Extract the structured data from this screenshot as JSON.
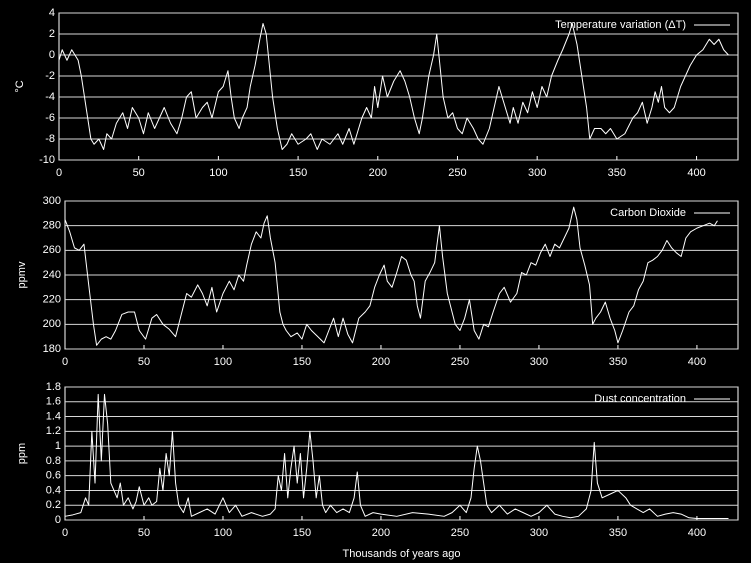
{
  "chart_data": [
    {
      "type": "line",
      "y_label": "°C",
      "legend": "upper right",
      "grid": true,
      "xlim": [
        0,
        426
      ],
      "ylim": [
        -10,
        4
      ],
      "xticks": [
        0,
        50,
        100,
        150,
        200,
        250,
        300,
        350,
        400
      ],
      "yticks": [
        -10,
        -8,
        -6,
        -4,
        -2,
        0,
        2,
        4
      ],
      "x": [
        0,
        2,
        5,
        8,
        10,
        12,
        14,
        16,
        18,
        20,
        22,
        25,
        28,
        30,
        33,
        36,
        40,
        43,
        46,
        50,
        53,
        56,
        60,
        63,
        66,
        70,
        74,
        77,
        80,
        83,
        86,
        90,
        93,
        96,
        100,
        103,
        106,
        108,
        110,
        113,
        115,
        118,
        120,
        123,
        126,
        128,
        130,
        132,
        134,
        137,
        140,
        143,
        146,
        150,
        155,
        158,
        162,
        165,
        170,
        175,
        178,
        182,
        185,
        188,
        190,
        193,
        196,
        198,
        200,
        203,
        206,
        210,
        214,
        217,
        220,
        223,
        226,
        228,
        230,
        232,
        235,
        237,
        239,
        241,
        244,
        247,
        250,
        253,
        256,
        260,
        263,
        266,
        270,
        273,
        276,
        279,
        283,
        285,
        288,
        291,
        294,
        297,
        300,
        303,
        306,
        309,
        313,
        316,
        320,
        322,
        325,
        328,
        331,
        333,
        336,
        340,
        343,
        346,
        350,
        355,
        360,
        363,
        366,
        369,
        372,
        374,
        376,
        378,
        380,
        383,
        386,
        388,
        390,
        393,
        396,
        400,
        404,
        408,
        411,
        414,
        417,
        420
      ],
      "series": [
        {
          "name": "Temperature variation (ΔT)",
          "color": "#ffffff",
          "values": [
            -0.5,
            0.5,
            -0.5,
            0.5,
            0,
            -0.5,
            -2,
            -4,
            -6,
            -8,
            -8.5,
            -8,
            -9,
            -7.5,
            -8,
            -6.5,
            -5.5,
            -7,
            -5,
            -6,
            -7.5,
            -5.5,
            -7,
            -6,
            -5,
            -6.5,
            -7.5,
            -6,
            -4,
            -3.5,
            -6,
            -5,
            -4.5,
            -6,
            -3.5,
            -3,
            -1.5,
            -4,
            -6,
            -7,
            -6,
            -5,
            -3,
            -1,
            1.5,
            3,
            2,
            -1,
            -4,
            -7,
            -9,
            -8.5,
            -7.5,
            -8.5,
            -8,
            -7.5,
            -9,
            -8,
            -8.5,
            -7.5,
            -8.5,
            -7,
            -8.5,
            -7,
            -6,
            -5,
            -6,
            -3,
            -5,
            -2,
            -4,
            -2.5,
            -1.5,
            -2.5,
            -4,
            -6,
            -7.5,
            -6,
            -4,
            -2,
            0,
            2,
            -1,
            -4,
            -6,
            -5.5,
            -7,
            -7.5,
            -6,
            -7,
            -8,
            -8.5,
            -7,
            -5,
            -3,
            -4.5,
            -6.5,
            -5,
            -6.5,
            -4.5,
            -5.5,
            -3.5,
            -5,
            -3,
            -4,
            -2,
            -0.5,
            0.5,
            2,
            3,
            1,
            -2,
            -5,
            -8,
            -7,
            -7,
            -7.5,
            -7,
            -8,
            -7.5,
            -6,
            -5.5,
            -4.5,
            -6.5,
            -5,
            -3.5,
            -4.5,
            -3,
            -5,
            -5.5,
            -5,
            -4,
            -3,
            -2,
            -1,
            0,
            0.5,
            1.5,
            1,
            1.5,
            0.5,
            0
          ]
        }
      ]
    },
    {
      "type": "line",
      "y_label": "ppmv",
      "legend": "upper right",
      "grid": true,
      "xlim": [
        0,
        426
      ],
      "ylim": [
        180,
        300
      ],
      "xticks": [
        0,
        50,
        100,
        150,
        200,
        250,
        300,
        350,
        400
      ],
      "yticks": [
        180,
        200,
        220,
        240,
        260,
        280,
        300
      ],
      "x": [
        0,
        3,
        6,
        9,
        12,
        15,
        18,
        20,
        23,
        26,
        29,
        32,
        36,
        40,
        44,
        47,
        51,
        55,
        58,
        62,
        66,
        70,
        73,
        77,
        80,
        84,
        87,
        90,
        93,
        96,
        100,
        104,
        107,
        110,
        113,
        115,
        118,
        121,
        124,
        126,
        128,
        130,
        133,
        136,
        138,
        140,
        143,
        147,
        150,
        153,
        156,
        160,
        164,
        167,
        170,
        173,
        176,
        179,
        182,
        186,
        190,
        193,
        196,
        199,
        202,
        204,
        207,
        210,
        213,
        216,
        219,
        221,
        223,
        225,
        228,
        231,
        234,
        237,
        239,
        242,
        245,
        247,
        250,
        253,
        256,
        259,
        262,
        265,
        268,
        271,
        275,
        278,
        282,
        286,
        289,
        292,
        295,
        298,
        301,
        304,
        307,
        310,
        313,
        316,
        319,
        322,
        324,
        326,
        329,
        332,
        334,
        336,
        339,
        342,
        345,
        348,
        350,
        353,
        357,
        360,
        363,
        366,
        369,
        372,
        375,
        378,
        381,
        384,
        387,
        390,
        393,
        396,
        400,
        404,
        408,
        411,
        413
      ],
      "series": [
        {
          "name": "Carbon Dioxide",
          "color": "#ffffff",
          "values": [
            285,
            275,
            262,
            260,
            265,
            232,
            200,
            183,
            188,
            190,
            188,
            195,
            208,
            210,
            210,
            195,
            188,
            205,
            208,
            200,
            196,
            190,
            205,
            225,
            222,
            232,
            225,
            215,
            230,
            210,
            225,
            235,
            228,
            240,
            235,
            248,
            265,
            275,
            270,
            282,
            288,
            270,
            250,
            210,
            200,
            195,
            190,
            193,
            188,
            200,
            195,
            190,
            185,
            195,
            205,
            190,
            205,
            192,
            185,
            205,
            210,
            215,
            230,
            240,
            248,
            235,
            230,
            242,
            255,
            252,
            240,
            235,
            215,
            205,
            235,
            242,
            250,
            280,
            255,
            225,
            210,
            200,
            195,
            205,
            220,
            195,
            188,
            200,
            198,
            210,
            225,
            230,
            218,
            225,
            242,
            240,
            250,
            248,
            258,
            265,
            255,
            265,
            262,
            270,
            278,
            295,
            285,
            262,
            248,
            232,
            200,
            205,
            210,
            218,
            205,
            195,
            185,
            195,
            210,
            215,
            228,
            235,
            250,
            252,
            255,
            260,
            268,
            262,
            258,
            255,
            270,
            275,
            278,
            280,
            282,
            280,
            284
          ]
        }
      ]
    },
    {
      "type": "line",
      "y_label": "ppm",
      "x_label": "Thousands of years ago",
      "legend": "upper right",
      "grid": true,
      "xlim": [
        0,
        426
      ],
      "ylim": [
        0,
        1.8
      ],
      "xticks": [
        0,
        50,
        100,
        150,
        200,
        250,
        300,
        350,
        400
      ],
      "yticks": [
        0,
        0.2,
        0.4,
        0.6,
        0.8,
        1,
        1.2,
        1.4,
        1.6,
        1.8
      ],
      "x": [
        0,
        5,
        10,
        13,
        15,
        17,
        19,
        21,
        23,
        25,
        27,
        29,
        31,
        33,
        35,
        37,
        40,
        43,
        45,
        47,
        50,
        53,
        55,
        58,
        60,
        62,
        64,
        66,
        68,
        70,
        72,
        75,
        78,
        80,
        85,
        90,
        95,
        100,
        104,
        108,
        112,
        118,
        125,
        130,
        133,
        135,
        137,
        139,
        141,
        143,
        145,
        147,
        149,
        151,
        153,
        155,
        157,
        159,
        161,
        163,
        165,
        168,
        172,
        176,
        180,
        183,
        185,
        187,
        190,
        195,
        200,
        210,
        220,
        230,
        240,
        245,
        250,
        254,
        257,
        259,
        261,
        263,
        265,
        267,
        270,
        275,
        280,
        285,
        290,
        295,
        300,
        305,
        310,
        315,
        320,
        325,
        330,
        333,
        335,
        337,
        340,
        345,
        350,
        355,
        358,
        362,
        366,
        370,
        375,
        380,
        385,
        390,
        395,
        400,
        410,
        420
      ],
      "series": [
        {
          "name": "Dust concentration",
          "color": "#ffffff",
          "values": [
            0.05,
            0.07,
            0.1,
            0.3,
            0.2,
            1.2,
            0.5,
            1.7,
            0.8,
            1.7,
            1.3,
            0.5,
            0.4,
            0.3,
            0.5,
            0.2,
            0.3,
            0.15,
            0.25,
            0.45,
            0.2,
            0.3,
            0.2,
            0.25,
            0.7,
            0.4,
            0.9,
            0.6,
            1.2,
            0.5,
            0.2,
            0.1,
            0.3,
            0.05,
            0.1,
            0.15,
            0.08,
            0.3,
            0.1,
            0.2,
            0.05,
            0.1,
            0.05,
            0.08,
            0.15,
            0.6,
            0.4,
            0.9,
            0.3,
            0.7,
            1.0,
            0.5,
            0.9,
            0.3,
            0.7,
            1.2,
            0.8,
            0.3,
            0.6,
            0.2,
            0.1,
            0.2,
            0.1,
            0.15,
            0.1,
            0.3,
            0.65,
            0.2,
            0.05,
            0.1,
            0.08,
            0.05,
            0.1,
            0.08,
            0.05,
            0.1,
            0.2,
            0.1,
            0.3,
            0.7,
            1.0,
            0.8,
            0.5,
            0.2,
            0.1,
            0.2,
            0.08,
            0.15,
            0.1,
            0.05,
            0.1,
            0.2,
            0.08,
            0.05,
            0.03,
            0.05,
            0.15,
            0.4,
            1.05,
            0.5,
            0.3,
            0.35,
            0.4,
            0.3,
            0.2,
            0.15,
            0.1,
            0.15,
            0.05,
            0.08,
            0.1,
            0.08,
            0.03,
            0.02,
            0.02,
            0.02
          ]
        }
      ]
    }
  ]
}
